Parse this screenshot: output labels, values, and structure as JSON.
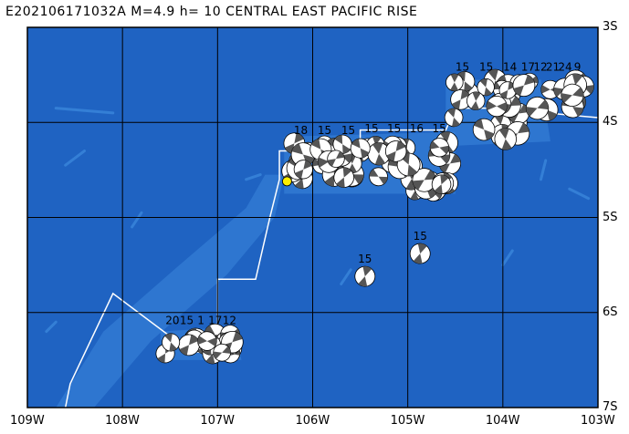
{
  "title": "E202106171032A M=4.9 h= 10 CENTRAL EAST PACIFIC RISE",
  "colors": {
    "ocean": "#1f63c2",
    "ridge": "#3a86dc",
    "plate_boundary": "#ffffff",
    "grid": "#000000",
    "epicenter": "#ffee00",
    "beachball_dark": "#555555"
  },
  "lon_labels": [
    "109W",
    "108W",
    "107W",
    "106W",
    "105W",
    "104W",
    "103W"
  ],
  "lat_labels": [
    "3S",
    "4S",
    "5S",
    "6S",
    "7S"
  ],
  "bounds": {
    "lon_min": -109,
    "lon_max": -103,
    "lat_max": -3,
    "lat_min": -7
  },
  "epicenter": {
    "lon": -106.27,
    "lat": -4.62
  },
  "plate_boundary": [
    [
      -108.6,
      -7.0
    ],
    [
      -108.55,
      -6.75
    ],
    [
      -108.1,
      -5.8
    ],
    [
      -107.3,
      -6.4
    ],
    [
      -107.0,
      -6.45
    ],
    [
      -107.0,
      -5.65
    ],
    [
      -106.6,
      -5.65
    ],
    [
      -106.45,
      -5.0
    ],
    [
      -106.35,
      -4.6
    ],
    [
      -106.35,
      -4.3
    ],
    [
      -105.5,
      -4.3
    ],
    [
      -105.5,
      -4.08
    ],
    [
      -104.6,
      -4.08
    ],
    [
      -104.5,
      -3.85
    ],
    [
      -104.1,
      -3.85
    ],
    [
      -103.0,
      -3.95
    ]
  ],
  "event_groups": [
    {
      "lon": [
        -107.55,
        -106.8
      ],
      "lat": [
        -6.22,
        -6.45
      ],
      "count": 22,
      "labels": [
        "20",
        "15",
        "1",
        "17",
        "12"
      ]
    },
    {
      "lon": [
        -106.25,
        -105.5
      ],
      "lat": [
        -4.22,
        -4.6
      ],
      "count": 28,
      "labels": [
        "18",
        "15",
        "15"
      ]
    },
    {
      "lon": [
        -105.5,
        -104.55
      ],
      "lat": [
        -4.2,
        -4.75
      ],
      "count": 30,
      "labels": [
        "15",
        "15",
        "16",
        "15"
      ]
    },
    {
      "lon": [
        -104.55,
        -103.8
      ],
      "lat": [
        -3.55,
        -4.2
      ],
      "count": 26,
      "labels": [
        "15",
        "15",
        "14"
      ]
    },
    {
      "lon": [
        -103.8,
        -103.15
      ],
      "lat": [
        -3.55,
        -3.9
      ],
      "count": 12,
      "labels": [
        "17",
        "12",
        "21",
        "24",
        "9"
      ]
    }
  ],
  "single_events": [
    {
      "lon": -105.45,
      "lat": -5.62,
      "label": "15"
    },
    {
      "lon": -104.87,
      "lat": -5.38,
      "label": "15"
    }
  ]
}
